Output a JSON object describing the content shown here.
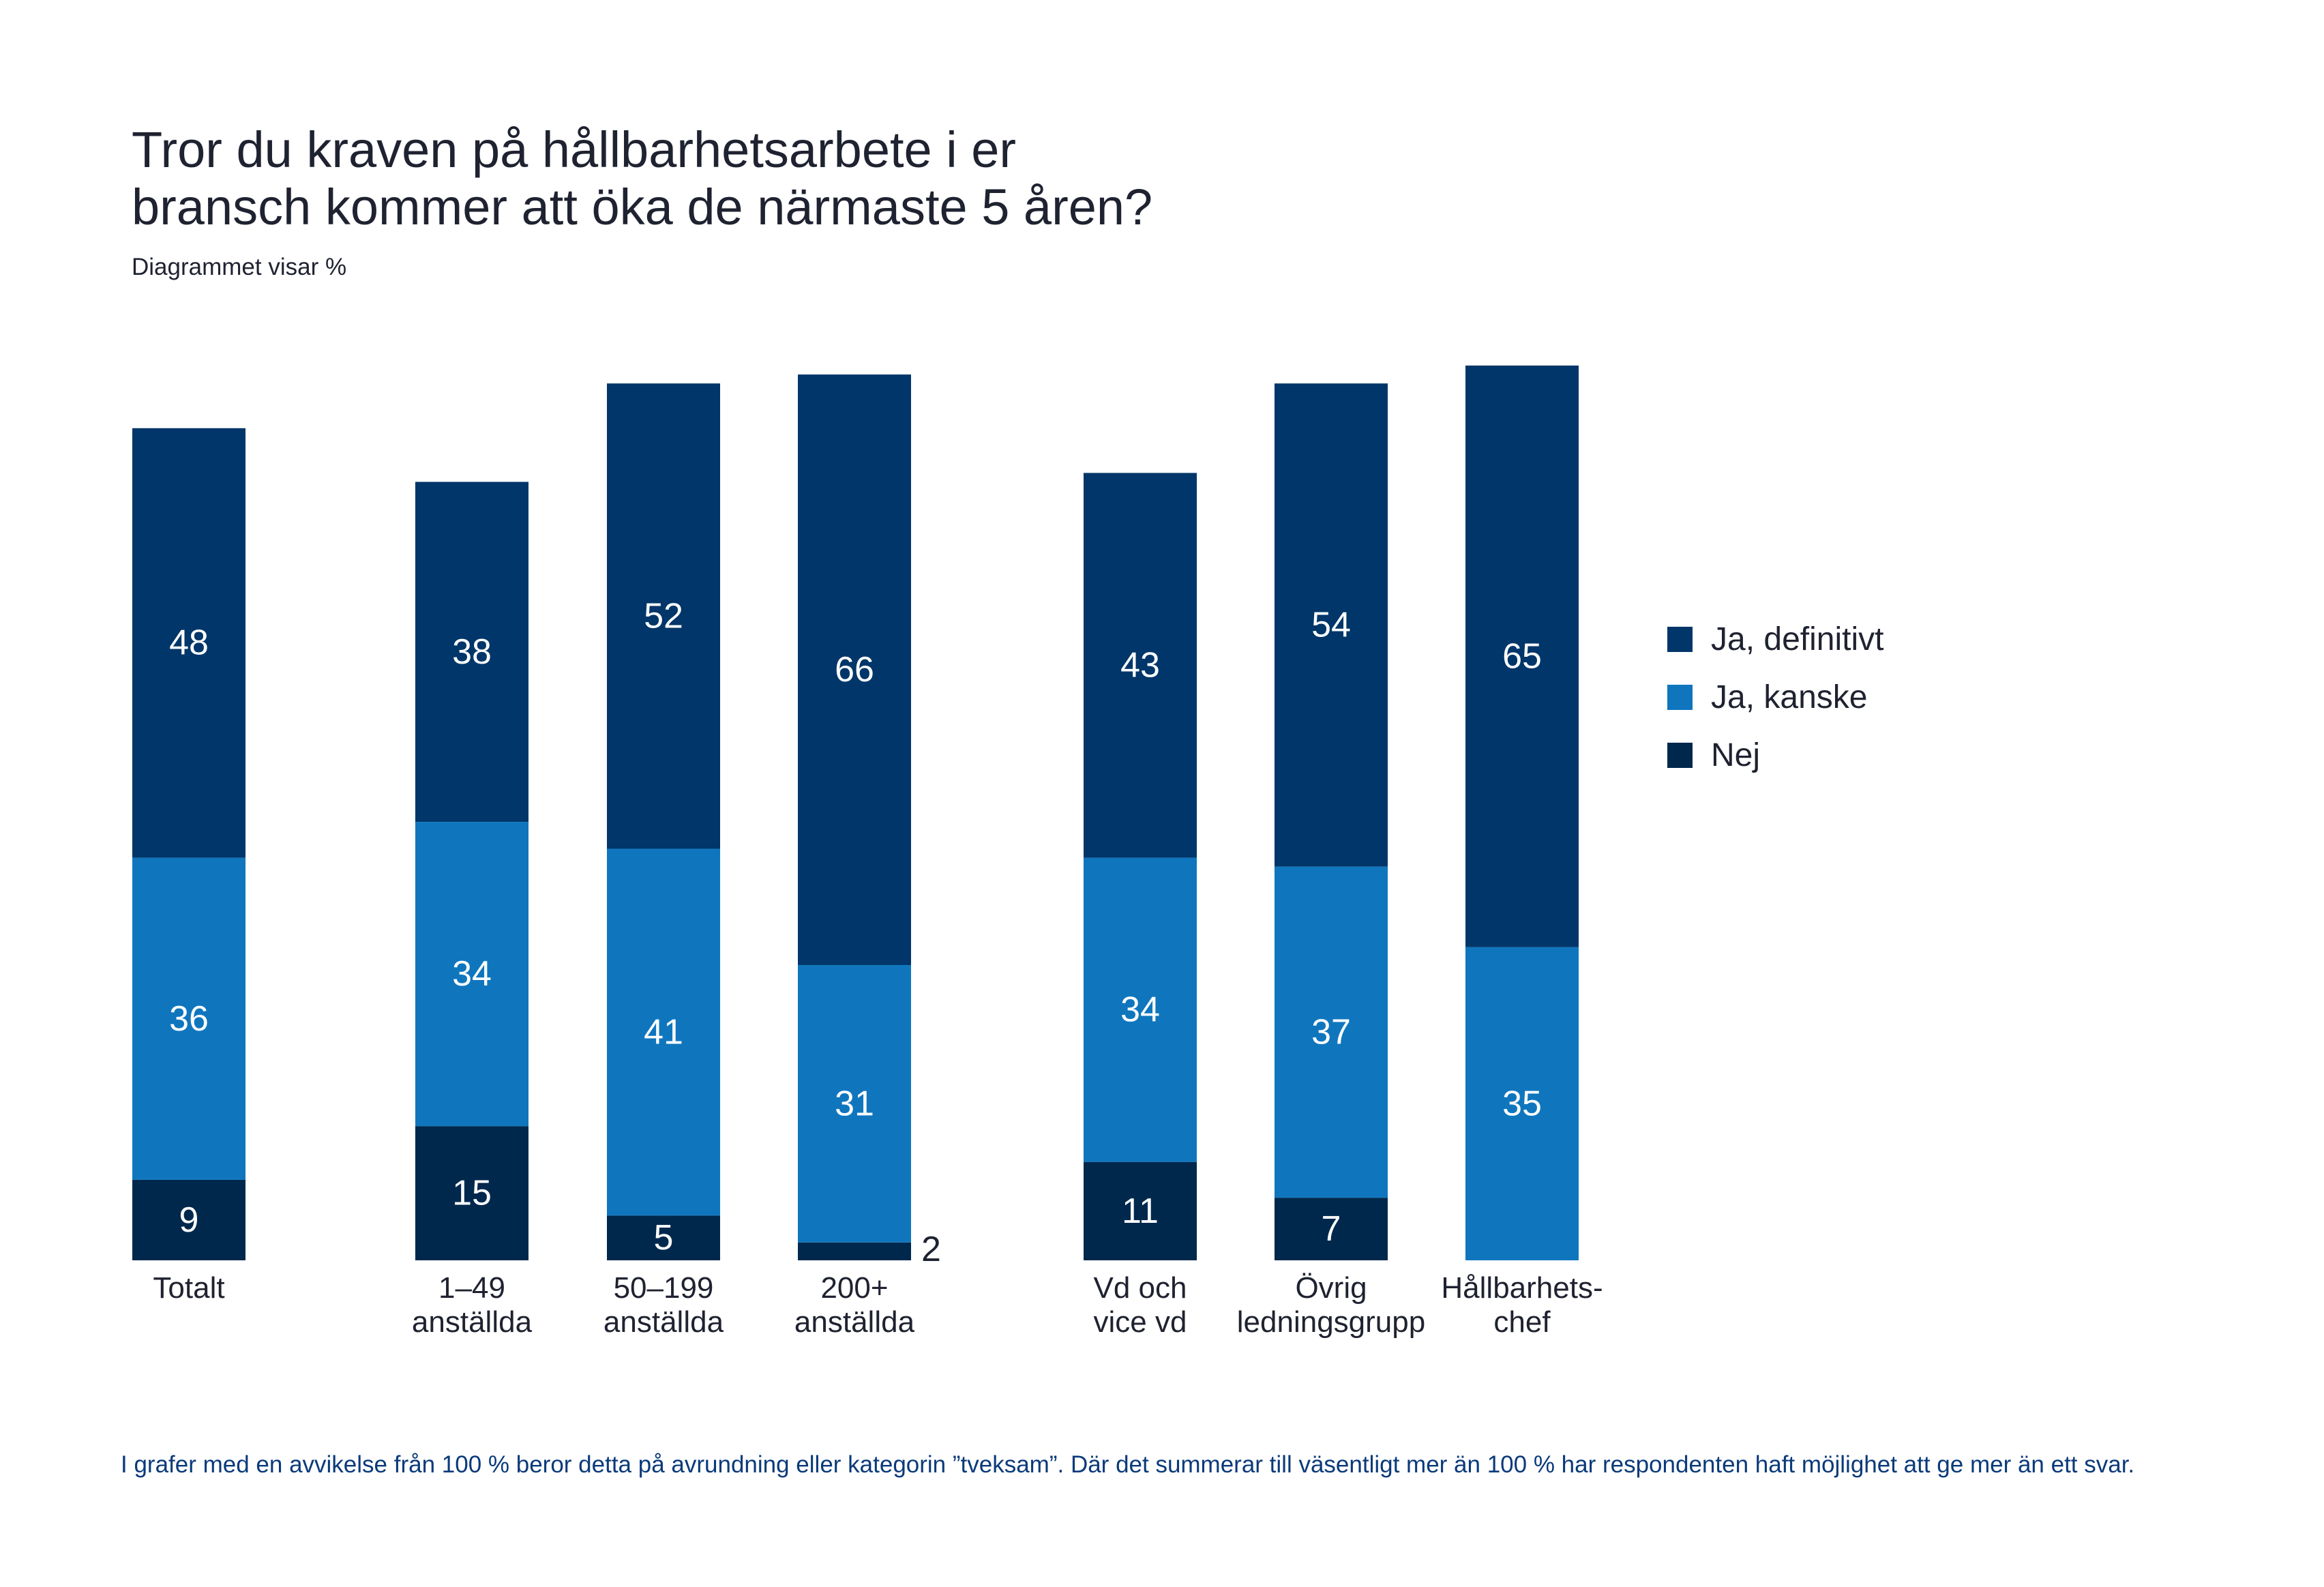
{
  "title_lines": [
    "Tror du kraven på hållbarhetsarbete i er",
    "bransch kommer att öka de närmaste 5 åren?"
  ],
  "subtitle": "Diagrammet visar %",
  "legend": [
    {
      "label": "Ja, definitivt",
      "color": "#003669"
    },
    {
      "label": "Ja, kanske",
      "color": "#0f76be"
    },
    {
      "label": "Nej",
      "color": "#00284d"
    }
  ],
  "footnote": "I grafer med en avvikelse från 100 % beror detta på avrundning eller kategorin ”tveksam”. Där det summerar till väsentligt mer än 100 % har respondenten haft möjlighet att ge mer än ett svar.",
  "chart_data": {
    "type": "bar",
    "stacked": true,
    "unit": "%",
    "categories": [
      [
        "Totalt"
      ],
      [
        "1–49",
        "anställda"
      ],
      [
        "50–199",
        "anställda"
      ],
      [
        "200+",
        "anställda"
      ],
      [
        "Vd och",
        "vice vd"
      ],
      [
        "Övrig",
        "ledningsgrupp"
      ],
      [
        "Hållbarhets-",
        "chef"
      ]
    ],
    "groups": [
      [
        0
      ],
      [
        1,
        2,
        3
      ],
      [
        4,
        5,
        6
      ]
    ],
    "series": [
      {
        "name": "Nej",
        "values": [
          9,
          15,
          5,
          2,
          11,
          7,
          null
        ]
      },
      {
        "name": "Ja, kanske",
        "values": [
          36,
          34,
          41,
          31,
          34,
          37,
          35
        ]
      },
      {
        "name": "Ja, definitivt",
        "values": [
          48,
          38,
          52,
          66,
          43,
          54,
          65
        ]
      }
    ],
    "colors": {
      "Ja, definitivt": "#003669",
      "Ja, kanske": "#0f76be",
      "Nej": "#00284d"
    },
    "label_color": "#ffffff",
    "outside_label_color": "#1f2230",
    "legend_position": "right",
    "grid": false
  }
}
